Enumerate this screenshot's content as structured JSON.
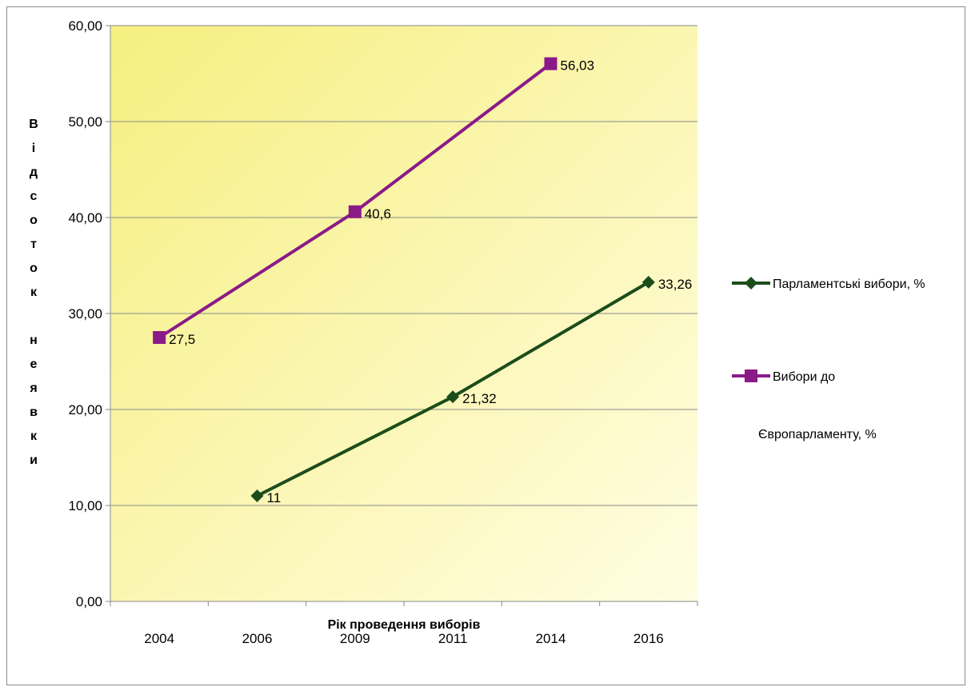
{
  "chart_data": {
    "type": "line",
    "categories": [
      "2004",
      "2006",
      "2009",
      "2011",
      "2014",
      "2016"
    ],
    "series": [
      {
        "name": "Парламентські вибори, %",
        "values": [
          null,
          11,
          null,
          21.32,
          null,
          33.26
        ],
        "labels": [
          "",
          "11",
          "",
          "21,32",
          "",
          "33,26"
        ],
        "color": "#1b4d1b",
        "marker": "diamond"
      },
      {
        "name": "Вибори до Європарламенту, %",
        "legend_lines": [
          "Вибори до",
          "Європарламенту, %"
        ],
        "values": [
          27.5,
          null,
          40.6,
          null,
          56.03,
          null
        ],
        "labels": [
          "27,5",
          "",
          "40,6",
          "",
          "56,03",
          ""
        ],
        "color": "#8b1a89",
        "marker": "square"
      }
    ],
    "ylim": [
      0,
      60
    ],
    "yticks": [
      "0,00",
      "10,00",
      "20,00",
      "30,00",
      "40,00",
      "50,00",
      "60,00"
    ],
    "ylabel_chars": [
      "В",
      "і",
      "д",
      "с",
      "о",
      "т",
      "о",
      "к",
      "",
      "н",
      "е",
      "я",
      "в",
      "к",
      "и"
    ],
    "xlabel": "Рік проведення виборів",
    "grid": true,
    "legend_position": "right",
    "plot_background": "gradient yellow (#f6f08a to #fffde0)"
  }
}
